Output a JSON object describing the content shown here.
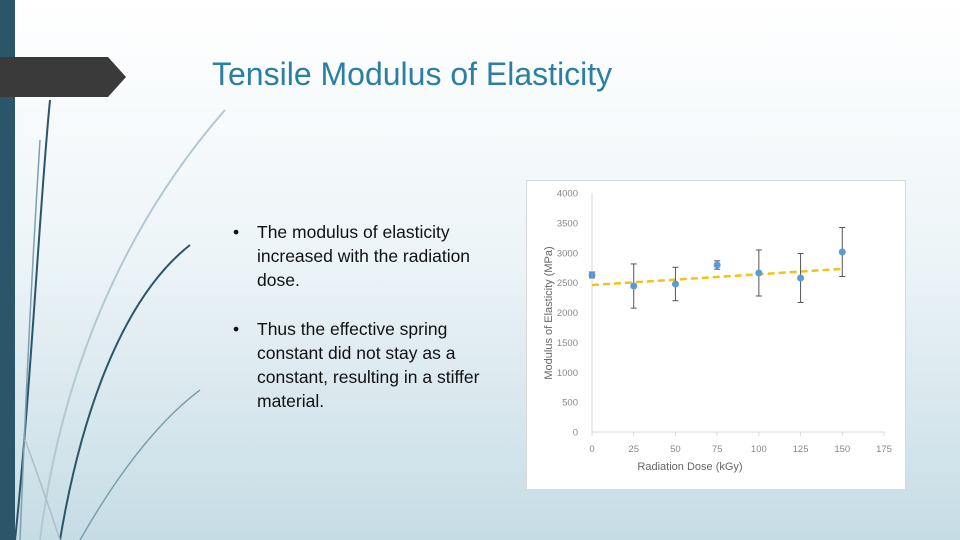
{
  "title": "Tensile Modulus of Elasticity",
  "bullets": [
    "The modulus of elasticity increased with the radiation dose.",
    "Thus the effective spring constant did not stay as a constant, resulting in a stiffer material."
  ],
  "chart_data": {
    "type": "scatter",
    "x_label": "Radiation Dose (kGy)",
    "y_label": "Modulus of Elasticity (MPa)",
    "x": [
      0,
      25,
      50,
      75,
      100,
      125,
      150
    ],
    "values": [
      2628,
      2443,
      2477,
      2795,
      2661,
      2577,
      3013
    ],
    "errors": [
      50,
      370,
      280,
      70,
      385,
      410,
      410
    ],
    "color": "#5b9bd5",
    "trendline": {
      "x": [
        0,
        150
      ],
      "values": [
        2460,
        2730
      ],
      "color": "#f2c21b",
      "dashed": true
    },
    "xlim": [
      0,
      175
    ],
    "xticks": [
      0,
      25,
      50,
      75,
      100,
      125,
      150,
      175
    ],
    "ylim": [
      0,
      4000
    ],
    "yticks": [
      0,
      500,
      1000,
      1500,
      2000,
      2500,
      3000,
      3500,
      4000
    ]
  }
}
